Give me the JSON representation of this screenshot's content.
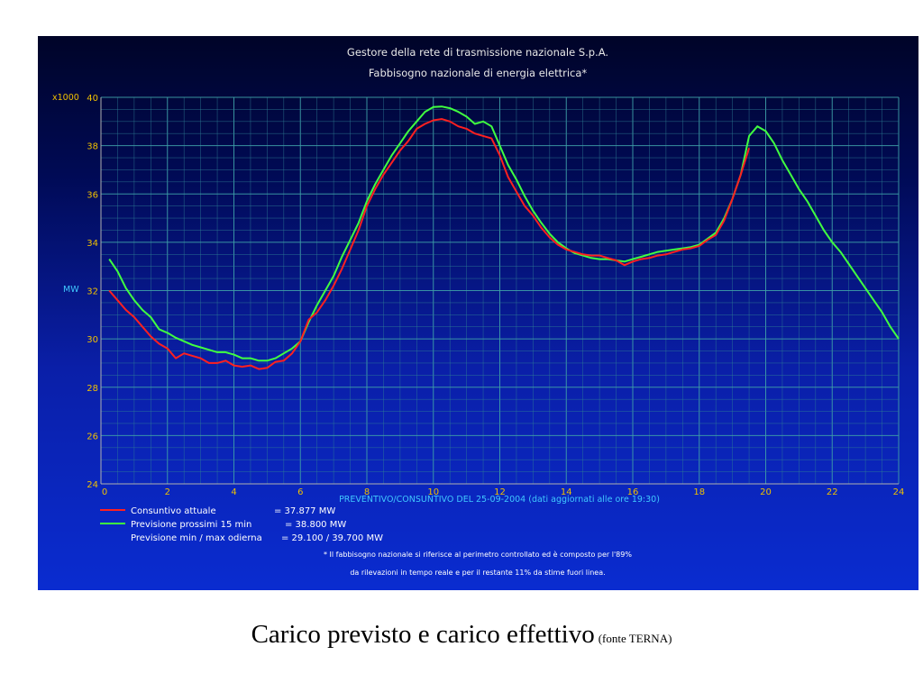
{
  "chart_data": {
    "type": "line",
    "title": "Gestore della rete di trasmissione nazionale S.p.A.",
    "subtitle": "Fabbisogno nazionale di energia elettrica*",
    "ylabel": "MW",
    "y_multiplier": "x1000",
    "xlabel": "PREVENTIVO/CONSUNTIVO DEL 25-09-2004 (dati aggiornati alle ore 19:30)",
    "xlim": [
      0,
      24
    ],
    "ylim": [
      24,
      40
    ],
    "x_ticks": [
      0,
      2,
      4,
      6,
      8,
      10,
      12,
      14,
      16,
      18,
      20,
      22,
      24
    ],
    "y_ticks": [
      24,
      26,
      28,
      30,
      32,
      34,
      36,
      38,
      40
    ],
    "grid": true,
    "series": [
      {
        "name": "Consuntivo attuale",
        "color": "#ff2020",
        "points": [
          [
            0.25,
            32.0
          ],
          [
            0.5,
            31.6
          ],
          [
            0.75,
            31.2
          ],
          [
            1.0,
            30.9
          ],
          [
            1.25,
            30.5
          ],
          [
            1.5,
            30.1
          ],
          [
            1.75,
            29.8
          ],
          [
            2.0,
            29.6
          ],
          [
            2.25,
            29.2
          ],
          [
            2.5,
            29.4
          ],
          [
            2.75,
            29.3
          ],
          [
            3.0,
            29.2
          ],
          [
            3.25,
            29.0
          ],
          [
            3.5,
            29.0
          ],
          [
            3.75,
            29.1
          ],
          [
            4.0,
            28.9
          ],
          [
            4.25,
            28.85
          ],
          [
            4.5,
            28.9
          ],
          [
            4.75,
            28.75
          ],
          [
            5.0,
            28.8
          ],
          [
            5.25,
            29.05
          ],
          [
            5.5,
            29.1
          ],
          [
            5.75,
            29.4
          ],
          [
            6.0,
            29.9
          ],
          [
            6.25,
            30.8
          ],
          [
            6.5,
            31.1
          ],
          [
            6.75,
            31.6
          ],
          [
            7.0,
            32.2
          ],
          [
            7.25,
            32.9
          ],
          [
            7.5,
            33.7
          ],
          [
            7.75,
            34.5
          ],
          [
            8.0,
            35.5
          ],
          [
            8.25,
            36.2
          ],
          [
            8.5,
            36.8
          ],
          [
            8.75,
            37.3
          ],
          [
            9.0,
            37.8
          ],
          [
            9.25,
            38.2
          ],
          [
            9.5,
            38.7
          ],
          [
            9.75,
            38.9
          ],
          [
            10.0,
            39.05
          ],
          [
            10.25,
            39.1
          ],
          [
            10.5,
            39.0
          ],
          [
            10.75,
            38.8
          ],
          [
            11.0,
            38.7
          ],
          [
            11.25,
            38.5
          ],
          [
            11.5,
            38.4
          ],
          [
            11.75,
            38.3
          ],
          [
            12.0,
            37.6
          ],
          [
            12.25,
            36.7
          ],
          [
            12.5,
            36.1
          ],
          [
            12.75,
            35.5
          ],
          [
            13.0,
            35.1
          ],
          [
            13.25,
            34.6
          ],
          [
            13.5,
            34.2
          ],
          [
            13.75,
            33.9
          ],
          [
            14.0,
            33.7
          ],
          [
            14.25,
            33.6
          ],
          [
            14.5,
            33.5
          ],
          [
            14.75,
            33.45
          ],
          [
            15.0,
            33.45
          ],
          [
            15.25,
            33.35
          ],
          [
            15.5,
            33.25
          ],
          [
            15.75,
            33.05
          ],
          [
            16.0,
            33.2
          ],
          [
            16.25,
            33.3
          ],
          [
            16.5,
            33.35
          ],
          [
            16.75,
            33.45
          ],
          [
            17.0,
            33.5
          ],
          [
            17.25,
            33.6
          ],
          [
            17.5,
            33.7
          ],
          [
            17.75,
            33.75
          ],
          [
            18.0,
            33.85
          ],
          [
            18.25,
            34.1
          ],
          [
            18.5,
            34.3
          ],
          [
            18.75,
            34.9
          ],
          [
            19.0,
            35.8
          ],
          [
            19.25,
            36.8
          ],
          [
            19.5,
            37.9
          ]
        ]
      },
      {
        "name": "Previsione  prossimi  15 min",
        "color": "#40ff40",
        "points": [
          [
            0.25,
            33.3
          ],
          [
            0.5,
            32.8
          ],
          [
            0.75,
            32.1
          ],
          [
            1.0,
            31.6
          ],
          [
            1.25,
            31.2
          ],
          [
            1.5,
            30.9
          ],
          [
            1.75,
            30.4
          ],
          [
            2.0,
            30.25
          ],
          [
            2.25,
            30.05
          ],
          [
            2.5,
            29.9
          ],
          [
            2.75,
            29.75
          ],
          [
            3.0,
            29.65
          ],
          [
            3.25,
            29.55
          ],
          [
            3.5,
            29.45
          ],
          [
            3.75,
            29.45
          ],
          [
            4.0,
            29.35
          ],
          [
            4.25,
            29.2
          ],
          [
            4.5,
            29.2
          ],
          [
            4.75,
            29.1
          ],
          [
            5.0,
            29.1
          ],
          [
            5.25,
            29.2
          ],
          [
            5.5,
            29.4
          ],
          [
            5.75,
            29.6
          ],
          [
            6.0,
            29.9
          ],
          [
            6.25,
            30.7
          ],
          [
            6.5,
            31.4
          ],
          [
            6.75,
            32.0
          ],
          [
            7.0,
            32.6
          ],
          [
            7.25,
            33.4
          ],
          [
            7.5,
            34.1
          ],
          [
            7.75,
            34.8
          ],
          [
            8.0,
            35.7
          ],
          [
            8.25,
            36.4
          ],
          [
            8.5,
            37.0
          ],
          [
            8.75,
            37.6
          ],
          [
            9.0,
            38.1
          ],
          [
            9.25,
            38.6
          ],
          [
            9.5,
            39.0
          ],
          [
            9.75,
            39.4
          ],
          [
            10.0,
            39.6
          ],
          [
            10.25,
            39.62
          ],
          [
            10.5,
            39.55
          ],
          [
            10.75,
            39.4
          ],
          [
            11.0,
            39.2
          ],
          [
            11.25,
            38.9
          ],
          [
            11.5,
            39.0
          ],
          [
            11.75,
            38.8
          ],
          [
            12.0,
            38.0
          ],
          [
            12.25,
            37.2
          ],
          [
            12.5,
            36.6
          ],
          [
            12.75,
            35.9
          ],
          [
            13.0,
            35.3
          ],
          [
            13.25,
            34.8
          ],
          [
            13.5,
            34.35
          ],
          [
            13.75,
            34.0
          ],
          [
            14.0,
            33.75
          ],
          [
            14.25,
            33.55
          ],
          [
            14.5,
            33.45
          ],
          [
            14.75,
            33.35
          ],
          [
            15.0,
            33.3
          ],
          [
            15.25,
            33.3
          ],
          [
            15.5,
            33.25
          ],
          [
            15.75,
            33.2
          ],
          [
            16.0,
            33.3
          ],
          [
            16.25,
            33.4
          ],
          [
            16.5,
            33.5
          ],
          [
            16.75,
            33.6
          ],
          [
            17.0,
            33.65
          ],
          [
            17.25,
            33.7
          ],
          [
            17.5,
            33.75
          ],
          [
            17.75,
            33.8
          ],
          [
            18.0,
            33.9
          ],
          [
            18.25,
            34.15
          ],
          [
            18.5,
            34.4
          ],
          [
            18.75,
            35.0
          ],
          [
            19.0,
            35.8
          ],
          [
            19.25,
            36.8
          ],
          [
            19.5,
            38.4
          ],
          [
            19.75,
            38.8
          ],
          [
            20.0,
            38.6
          ],
          [
            20.25,
            38.1
          ],
          [
            20.5,
            37.4
          ],
          [
            20.75,
            36.8
          ],
          [
            21.0,
            36.2
          ],
          [
            21.25,
            35.7
          ],
          [
            21.5,
            35.1
          ],
          [
            21.75,
            34.5
          ],
          [
            22.0,
            34.0
          ],
          [
            22.25,
            33.6
          ],
          [
            22.5,
            33.1
          ],
          [
            22.75,
            32.6
          ],
          [
            23.0,
            32.1
          ],
          [
            23.25,
            31.6
          ],
          [
            23.5,
            31.1
          ],
          [
            23.75,
            30.5
          ],
          [
            24.0,
            30.0
          ]
        ]
      }
    ],
    "legend": [
      {
        "label": "Consuntivo attuale",
        "value": "=  37.877 MW"
      },
      {
        "label": "Previsione  prossimi  15 min",
        "value": "=  38.800 MW"
      },
      {
        "label": "Previsione min / max odierna",
        "value": "=  29.100 / 39.700 MW"
      }
    ],
    "footnotes": [
      "* Il fabbisogno nazionale si riferisce al perimetro controllato ed è composto per l'89%",
      "da rilevazioni in tempo reale e per il restante 11% da stime fuori linea."
    ]
  },
  "caption": {
    "main": "Carico previsto e carico effettivo",
    "source": "(fonte TERNA)"
  }
}
